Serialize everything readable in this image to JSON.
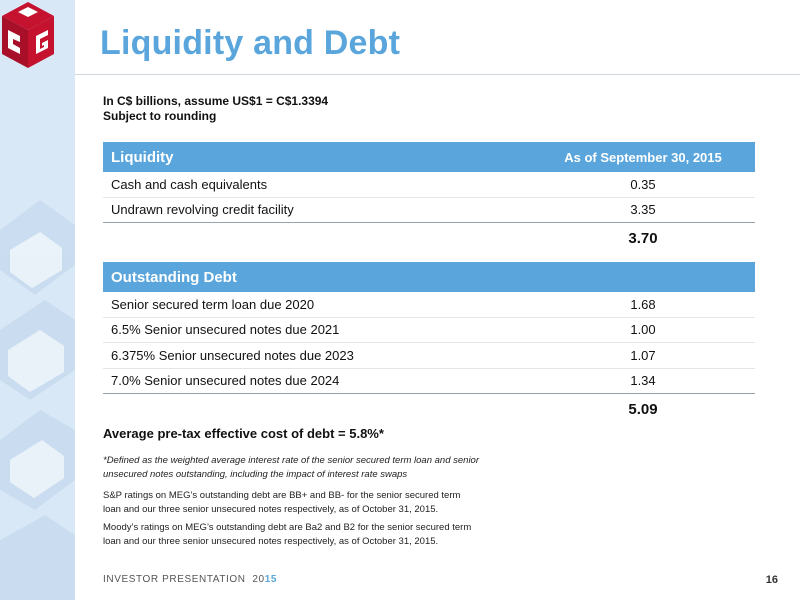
{
  "page": {
    "title": "Liquidity and Debt",
    "notes": [
      "In C$ billions, assume US$1 = C$1.3394",
      "Subject to rounding"
    ]
  },
  "logo": {
    "text": "MEG",
    "icon": "meg-cube-logo",
    "colors": {
      "red": "#c4122f",
      "white": "#ffffff"
    }
  },
  "liquidity": {
    "header": "Liquidity",
    "as_of": "As of September 30, 2015",
    "rows": [
      {
        "label": "Cash and cash equivalents",
        "value": "0.35"
      },
      {
        "label": "Undrawn revolving credit facility",
        "value": "3.35"
      }
    ],
    "total": "3.70"
  },
  "debt": {
    "header": "Outstanding Debt",
    "rows": [
      {
        "label": "Senior secured term loan due 2020",
        "value": "1.68"
      },
      {
        "label": "6.5% Senior unsecured notes due 2021",
        "value": "1.00"
      },
      {
        "label": "6.375% Senior unsecured notes due 2023",
        "value": "1.07"
      },
      {
        "label": "7.0% Senior unsecured notes due 2024",
        "value": "1.34"
      }
    ],
    "total": "5.09"
  },
  "average_cost": "Average pre-tax effective cost of debt = 5.8%*",
  "footnotes": {
    "definition": [
      "*Defined as the weighted average interest rate of the senior secured term loan and senior",
      "unsecured notes outstanding, including the impact of interest rate swaps"
    ],
    "sp": [
      "S&P ratings on MEG’s outstanding debt are BB+ and BB- for the senior secured term",
      "loan and our three senior unsecured notes respectively, as of October 31, 2015."
    ],
    "moodys": [
      "Moody’s ratings on MEG’s outstanding debt are Ba2 and B2 for the senior secured term",
      "loan and our three senior unsecured notes respectively, as of October 31, 2015."
    ]
  },
  "footer": {
    "label": "INVESTOR PRESENTATION",
    "year_prefix": "20",
    "year_suffix": "15",
    "page_number": "16"
  },
  "colors": {
    "accent": "#5aa6dc",
    "sidebar": "#d9e8f6",
    "logo_red": "#c4122f"
  }
}
